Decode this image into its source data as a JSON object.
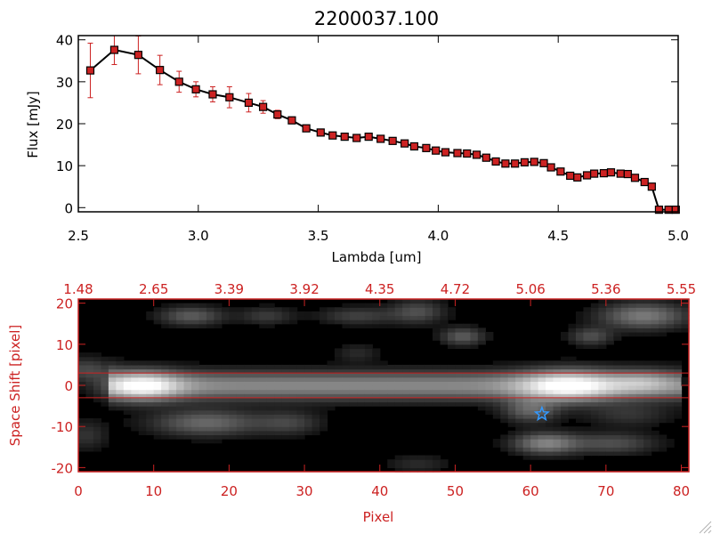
{
  "chart_data": [
    {
      "type": "line",
      "title": "2200037.100",
      "xlabel": "Lambda [um]",
      "ylabel": "Flux [mJy]",
      "xlim": [
        2.5,
        5.0
      ],
      "ylim": [
        -1,
        41
      ],
      "xticks": [
        "2.5",
        "3.0",
        "3.5",
        "4.0",
        "4.5",
        "5.0"
      ],
      "xtick_values": [
        2.5,
        3.0,
        3.5,
        4.0,
        4.5,
        5.0
      ],
      "yticks": [
        "0",
        "10",
        "20",
        "30",
        "40"
      ],
      "ytick_values": [
        0,
        10,
        20,
        30,
        40
      ],
      "grid": false,
      "line_color": "#000000",
      "marker_color": "#cc2222",
      "errorbar_color": "#cc2222",
      "series": [
        {
          "x": [
            2.55,
            2.65,
            2.75,
            2.84,
            2.92,
            2.99,
            3.06,
            3.13,
            3.21,
            3.27,
            3.33,
            3.39,
            3.45,
            3.51,
            3.56,
            3.61,
            3.66,
            3.71,
            3.76,
            3.81,
            3.86,
            3.9,
            3.95,
            3.99,
            4.03,
            4.08,
            4.12,
            4.16,
            4.2,
            4.24,
            4.28,
            4.32,
            4.36,
            4.4,
            4.44,
            4.47,
            4.51,
            4.55,
            4.58,
            4.62,
            4.65,
            4.69,
            4.72,
            4.76,
            4.79,
            4.82,
            4.86,
            4.89,
            4.92,
            4.96,
            4.99
          ],
          "y": [
            32.7,
            37.6,
            36.4,
            32.8,
            30.0,
            28.2,
            27.0,
            26.3,
            25.0,
            24.0,
            22.2,
            20.8,
            18.9,
            17.9,
            17.2,
            16.9,
            16.6,
            16.9,
            16.4,
            15.9,
            15.3,
            14.6,
            14.2,
            13.6,
            13.2,
            13.0,
            12.9,
            12.6,
            11.9,
            11.0,
            10.5,
            10.5,
            10.8,
            10.9,
            10.6,
            9.6,
            8.6,
            7.6,
            7.2,
            7.7,
            8.1,
            8.2,
            8.4,
            8.1,
            8.0,
            7.1,
            6.1,
            5.0,
            -0.5,
            -0.5,
            -0.5
          ],
          "yerr": [
            6.5,
            3.5,
            4.5,
            3.5,
            2.5,
            1.8,
            1.8,
            2.5,
            2.2,
            1.5,
            1.0,
            0.8,
            0.7,
            0.5,
            0.5,
            0.4,
            0.4,
            0.4,
            0.4,
            0.4,
            0.4,
            0.4,
            0.4,
            0.4,
            0.4,
            0.4,
            0.4,
            0.4,
            0.4,
            0.4,
            0.4,
            0.4,
            0.4,
            0.4,
            0.4,
            0.4,
            0.4,
            0.4,
            0.4,
            0.4,
            0.4,
            0.4,
            0.4,
            0.4,
            0.4,
            0.4,
            0.4,
            0.4,
            0.3,
            0.3,
            0.3
          ]
        }
      ]
    },
    {
      "type": "heatmap",
      "title": "",
      "xlabel": "Pixel",
      "ylabel": "Space Shift [pixel]",
      "xlim": [
        0,
        81
      ],
      "ylim": [
        -21,
        21
      ],
      "xticks": [
        "0",
        "10",
        "20",
        "30",
        "40",
        "50",
        "60",
        "70",
        "80"
      ],
      "xtick_values": [
        0,
        10,
        20,
        30,
        40,
        50,
        60,
        70,
        80
      ],
      "yticks": [
        "-20",
        "-10",
        "0",
        "10",
        "20"
      ],
      "ytick_values": [
        -20,
        -10,
        0,
        10,
        20
      ],
      "top_axis_ticks": [
        "1.48",
        "2.65",
        "3.39",
        "3.92",
        "4.35",
        "4.72",
        "5.06",
        "5.36",
        "5.55"
      ],
      "top_axis_tick_values": [
        0,
        10,
        20,
        30,
        40,
        50,
        60,
        70,
        80
      ],
      "axis_color": "#cc2222",
      "colormap": "grayscale",
      "extraction_lines_y": [
        3,
        -3
      ],
      "extraction_line_color": "#cc2222",
      "source_marker": {
        "x": 61.5,
        "y": -7,
        "symbol": "star",
        "color": "#3399ff"
      },
      "components": [
        {
          "kind": "trace",
          "x_start": 4,
          "x_end": 80,
          "y": 0,
          "width": 2.4,
          "amp": 0.48
        },
        {
          "kind": "blob",
          "x": 8.5,
          "y": 0,
          "sx": 3.5,
          "sy": 2.4,
          "amp": 0.62
        },
        {
          "kind": "blob",
          "x": 65,
          "y": 0,
          "sx": 4.5,
          "sy": 2.6,
          "amp": 0.65
        },
        {
          "kind": "blob",
          "x": 75,
          "y": 1,
          "sx": 3,
          "sy": 2,
          "amp": 0.25
        },
        {
          "kind": "blob",
          "x": 1,
          "y": 4,
          "sx": 2.5,
          "sy": 2,
          "amp": 0.22
        },
        {
          "kind": "blob",
          "x": 15,
          "y": 17,
          "sx": 3,
          "sy": 1.6,
          "amp": 0.3
        },
        {
          "kind": "blob",
          "x": 25,
          "y": 17,
          "sx": 2.5,
          "sy": 1.5,
          "amp": 0.18
        },
        {
          "kind": "blob",
          "x": 37,
          "y": 17,
          "sx": 3.5,
          "sy": 1.5,
          "amp": 0.2
        },
        {
          "kind": "blob",
          "x": 37,
          "y": 8,
          "sx": 2,
          "sy": 1.5,
          "amp": 0.12
        },
        {
          "kind": "blob",
          "x": 45,
          "y": 18,
          "sx": 2.5,
          "sy": 2,
          "amp": 0.25
        },
        {
          "kind": "blob",
          "x": 51,
          "y": 12,
          "sx": 2,
          "sy": 1.5,
          "amp": 0.3
        },
        {
          "kind": "blob",
          "x": 68,
          "y": 12,
          "sx": 2,
          "sy": 1.5,
          "amp": 0.25
        },
        {
          "kind": "blob",
          "x": 75,
          "y": 17,
          "sx": 4,
          "sy": 2.2,
          "amp": 0.42
        },
        {
          "kind": "blob",
          "x": 1,
          "y": -12,
          "sx": 2,
          "sy": 2.5,
          "amp": 0.15
        },
        {
          "kind": "blob",
          "x": 17,
          "y": -9,
          "sx": 5,
          "sy": 2.2,
          "amp": 0.35
        },
        {
          "kind": "blob",
          "x": 28,
          "y": -9,
          "sx": 3,
          "sy": 2,
          "amp": 0.2
        },
        {
          "kind": "blob",
          "x": 60,
          "y": -6,
          "sx": 2.5,
          "sy": 2,
          "amp": 0.32
        },
        {
          "kind": "blob",
          "x": 62,
          "y": -14,
          "sx": 3,
          "sy": 1.8,
          "amp": 0.45
        },
        {
          "kind": "blob",
          "x": 71,
          "y": -14,
          "sx": 4,
          "sy": 1.8,
          "amp": 0.25
        },
        {
          "kind": "blob",
          "x": 45,
          "y": -19,
          "sx": 3,
          "sy": 1.5,
          "amp": 0.12
        },
        {
          "kind": "blob",
          "x": 73,
          "y": -7,
          "sx": 4,
          "sy": 2,
          "amp": 0.15
        }
      ]
    }
  ]
}
